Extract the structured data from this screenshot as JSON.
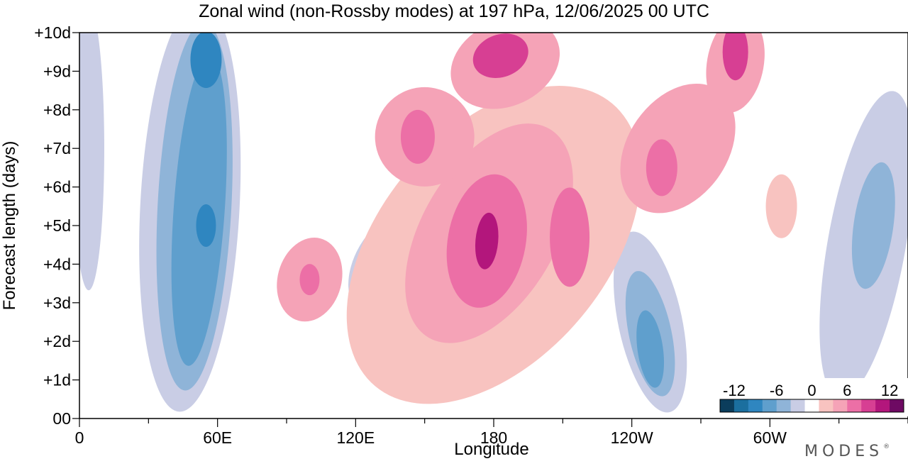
{
  "chart_data": {
    "type": "heatmap",
    "title": "Zonal wind (non-Rossby modes) at 197 hPa,  12/06/2025  00 UTC",
    "xlabel": "Longitude",
    "ylabel": "Forecast length (days)",
    "x_ticks": [
      "0",
      "60E",
      "120E",
      "180",
      "120W",
      "60W"
    ],
    "x_tick_values": [
      0,
      60,
      120,
      180,
      240,
      300
    ],
    "x_range": [
      0,
      360
    ],
    "y_ticks": [
      "00",
      "+1d",
      "+2d",
      "+3d",
      "+4d",
      "+5d",
      "+6d",
      "+7d",
      "+8d",
      "+9d",
      "+10d"
    ],
    "y_tick_values": [
      0,
      1,
      2,
      3,
      4,
      5,
      6,
      7,
      8,
      9,
      10
    ],
    "y_range": [
      0,
      10
    ],
    "colorbar": {
      "tick_labels": [
        "-12",
        "-6",
        "0",
        "6",
        "12"
      ],
      "tick_values": [
        -12,
        -6,
        0,
        6,
        12
      ],
      "levels": [
        -15,
        -12,
        -10,
        -8,
        -6,
        -4,
        -2,
        2,
        4,
        6,
        8,
        10,
        12,
        15
      ],
      "colors": [
        "#0b3d5c",
        "#1b6f9f",
        "#2f86c0",
        "#5f9fcd",
        "#8fb4d8",
        "#c9cde5",
        "#ffffff",
        "#f8c3c0",
        "#f5a3b7",
        "#ec6fa6",
        "#d73f93",
        "#b3167c",
        "#6e0a63"
      ],
      "placement": "bottom-right"
    },
    "features": [
      {
        "sign": "negative",
        "peak": -10,
        "lon": 55,
        "day": 5
      },
      {
        "sign": "negative",
        "peak": -10,
        "lon": 248,
        "day": 1.8
      },
      {
        "sign": "negative",
        "peak": -8,
        "lon": 340,
        "day": 5
      },
      {
        "sign": "positive",
        "peak": 10,
        "lon": 177,
        "day": 4.6
      },
      {
        "sign": "positive",
        "peak": 8,
        "lon": 213,
        "day": 4.7
      },
      {
        "sign": "positive",
        "peak": 8,
        "lon": 182,
        "day": 9.5
      },
      {
        "sign": "positive",
        "peak": 10,
        "lon": 285,
        "day": 9.5
      },
      {
        "sign": "positive",
        "peak": 8,
        "lon": 253,
        "day": 6.5
      },
      {
        "sign": "positive",
        "peak": 8,
        "lon": 147,
        "day": 7.3
      },
      {
        "sign": "positive",
        "peak": 6,
        "lon": 100,
        "day": 3.6
      }
    ],
    "grid": false
  },
  "brand": {
    "logo_text": "MODES",
    "logo_mark": "®"
  }
}
